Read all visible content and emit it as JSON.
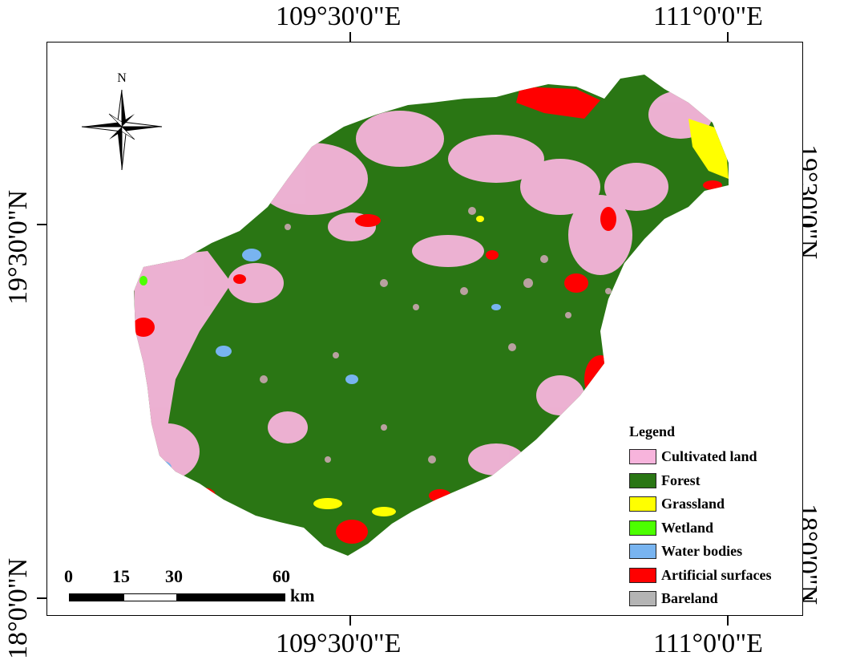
{
  "map": {
    "coords": {
      "top_left": "109°30'0\"E",
      "top_right": "111°0'0\"E",
      "bottom_left": "109°30'0\"E",
      "bottom_right": "111°0'0\"E",
      "left_top": "19°30'0\"N",
      "left_bottom": "18°0'0\"N",
      "right_top": "19°30'0\"N",
      "right_bottom": "18°0'0\"N"
    },
    "north_label": "N",
    "scale": {
      "labels": [
        "0",
        "15",
        "30",
        "60"
      ],
      "unit": "km"
    },
    "legend": {
      "title": "Legend",
      "items": [
        {
          "label": "Cultivated land",
          "color": "#f7b4dc"
        },
        {
          "label": "Forest",
          "color": "#2a7614"
        },
        {
          "label": "Grassland",
          "color": "#ffff00"
        },
        {
          "label": "Wetland",
          "color": "#4cff00"
        },
        {
          "label": "Water bodies",
          "color": "#78b4f0"
        },
        {
          "label": "Artificial surfaces",
          "color": "#ff0000"
        },
        {
          "label": "Bareland",
          "color": "#b4b4b4"
        }
      ]
    }
  }
}
